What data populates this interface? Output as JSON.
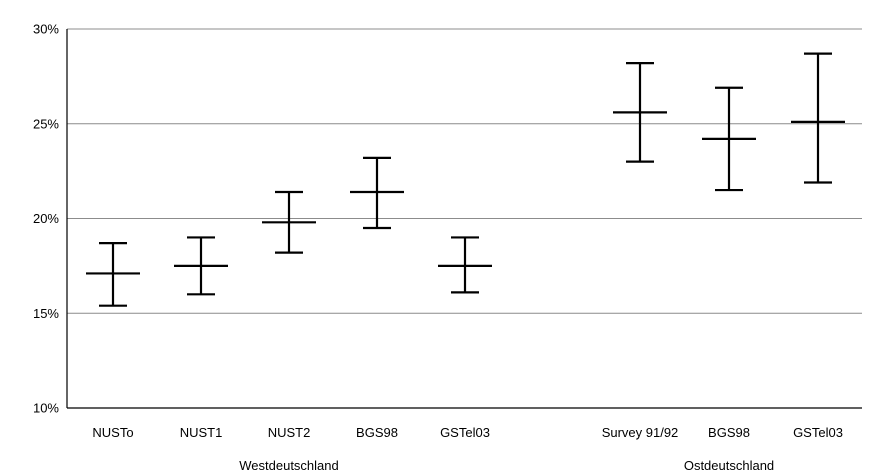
{
  "chart_data": {
    "type": "errorbar",
    "title": "",
    "xlabel": "",
    "ylabel": "",
    "y_unit": "%",
    "ylim": [
      10,
      30
    ],
    "y_ticks": [
      10,
      15,
      20,
      25,
      30
    ],
    "y_tick_labels": [
      "10%",
      "15%",
      "20%",
      "25%",
      "30%"
    ],
    "grid": "horizontal",
    "groups": [
      {
        "name": "Westdeutschland",
        "categories": [
          "NUSTo",
          "NUST1",
          "NUST2",
          "BGS98",
          "GSTel03"
        ],
        "center": [
          17.1,
          17.5,
          19.8,
          21.4,
          17.5
        ],
        "lower": [
          15.4,
          16.0,
          18.2,
          19.5,
          16.1
        ],
        "upper": [
          18.7,
          19.0,
          21.4,
          23.2,
          19.0
        ]
      },
      {
        "name": "Ostdeutschland",
        "categories": [
          "Survey 91/92",
          "BGS98",
          "GSTel03"
        ],
        "center": [
          25.6,
          24.2,
          25.1
        ],
        "lower": [
          23.0,
          21.5,
          21.9
        ],
        "upper": [
          28.2,
          26.9,
          28.7
        ]
      }
    ]
  }
}
